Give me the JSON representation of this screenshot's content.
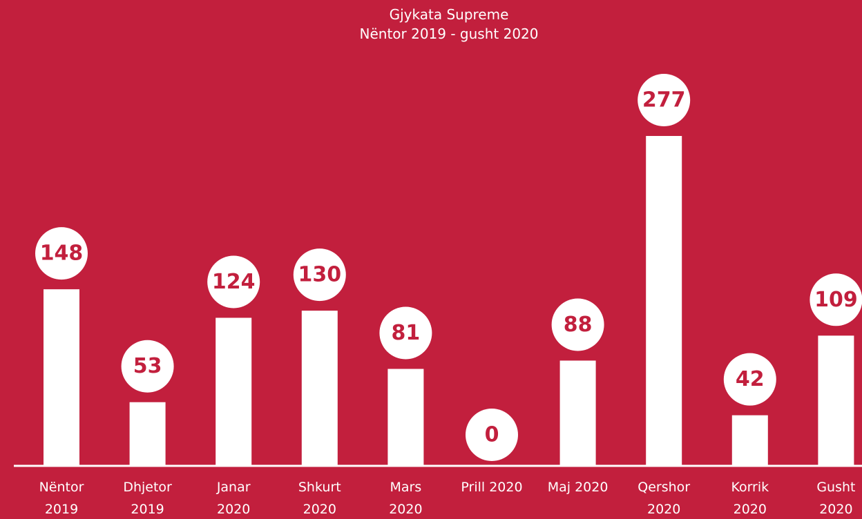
{
  "chart_data": {
    "type": "bar",
    "title": "Gjykata Supreme",
    "subtitle": "Nëntor 2019 - gusht 2020",
    "categories": [
      "Nëntor 2019",
      "Dhjetor 2019",
      "Janar 2020",
      "Shkurt 2020",
      "Mars 2020",
      "Prill 2020",
      "Maj 2020",
      "Qershor 2020",
      "Korrik 2020",
      "Gusht 2020"
    ],
    "values": [
      148,
      53,
      124,
      130,
      81,
      0,
      88,
      277,
      42,
      109
    ],
    "color": "#ffffff"
  }
}
